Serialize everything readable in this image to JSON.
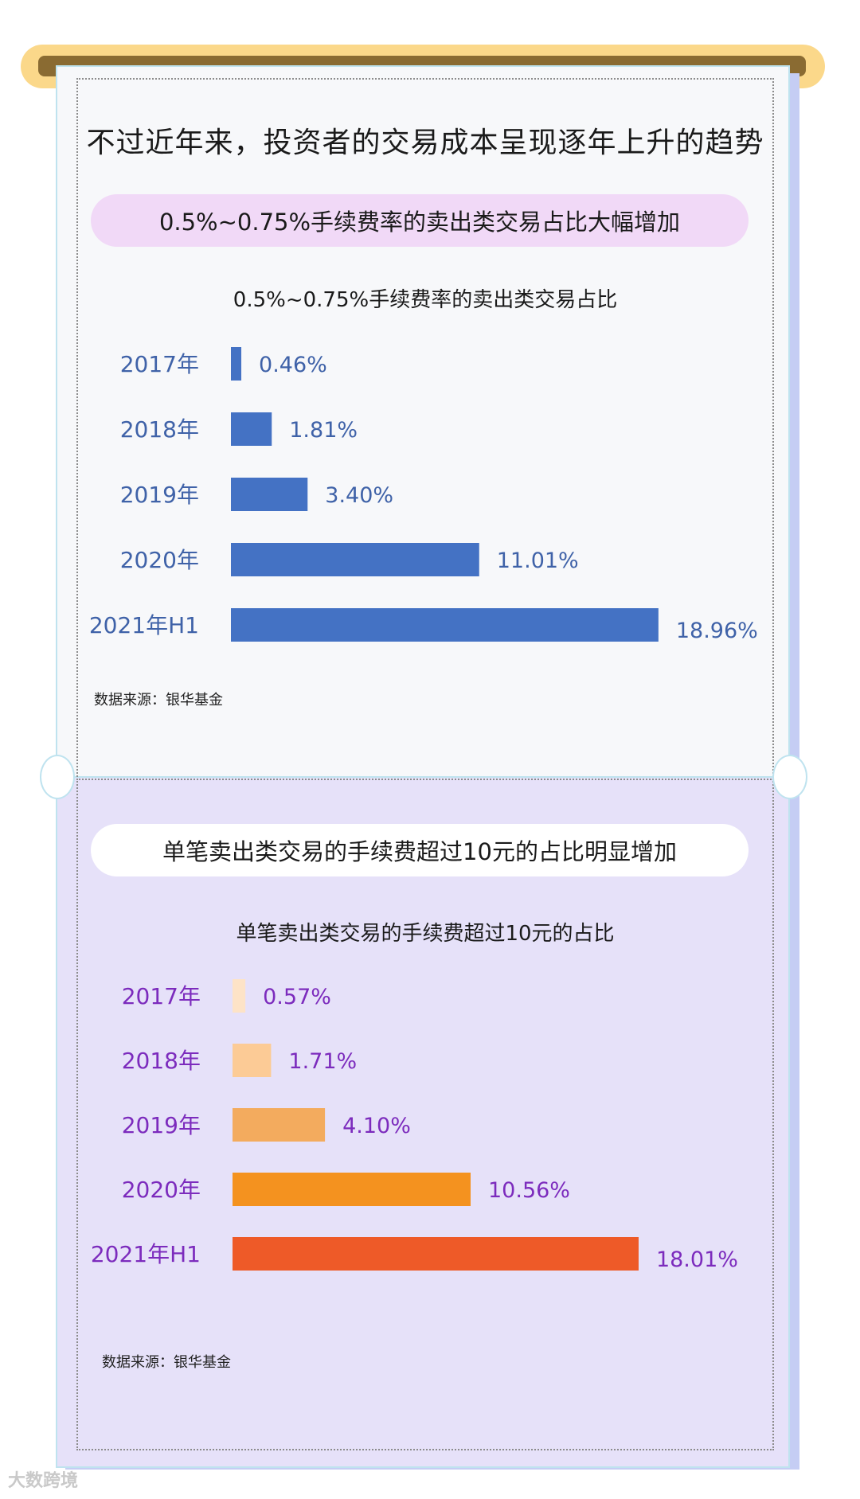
{
  "header": {
    "title": "不过近年来，投资者的交易成本呈现逐年上升的趋势"
  },
  "sections": [
    {
      "pill": "0.5%~0.75%手续费率的卖出类交易占比大幅增加",
      "source": "数据来源：银华基金"
    },
    {
      "pill": "单笔卖出类交易的手续费超过10元的占比明显增加",
      "source": "数据来源：银华基金"
    }
  ],
  "chart_data": [
    {
      "type": "bar",
      "orientation": "horizontal",
      "title": "0.5%~0.75%手续费率的卖出类交易占比",
      "categories": [
        "2017年",
        "2018年",
        "2019年",
        "2020年",
        "2021年H1"
      ],
      "values": [
        0.46,
        1.81,
        3.4,
        11.01,
        18.96
      ],
      "value_labels": [
        "0.46%",
        "1.81%",
        "3.40%",
        "11.01%",
        "18.96%"
      ],
      "bar_colors": [
        "#4472c4",
        "#4472c4",
        "#4472c4",
        "#4472c4",
        "#4472c4"
      ],
      "label_color": "#3f62a8",
      "xlim": [
        0,
        19
      ]
    },
    {
      "type": "bar",
      "orientation": "horizontal",
      "title": "单笔卖出类交易的手续费超过10元的占比",
      "categories": [
        "2017年",
        "2018年",
        "2019年",
        "2020年",
        "2021年H1"
      ],
      "values": [
        0.57,
        1.71,
        4.1,
        10.56,
        18.01
      ],
      "value_labels": [
        "0.57%",
        "1.71%",
        "4.10%",
        "10.56%",
        "18.01%"
      ],
      "bar_colors": [
        "#fde3c7",
        "#fccb96",
        "#f3ab5e",
        "#f4921f",
        "#ee5a28"
      ],
      "label_color": "#7c2bbd",
      "xlim": [
        0,
        19
      ]
    }
  ],
  "watermark": "大数跨境"
}
